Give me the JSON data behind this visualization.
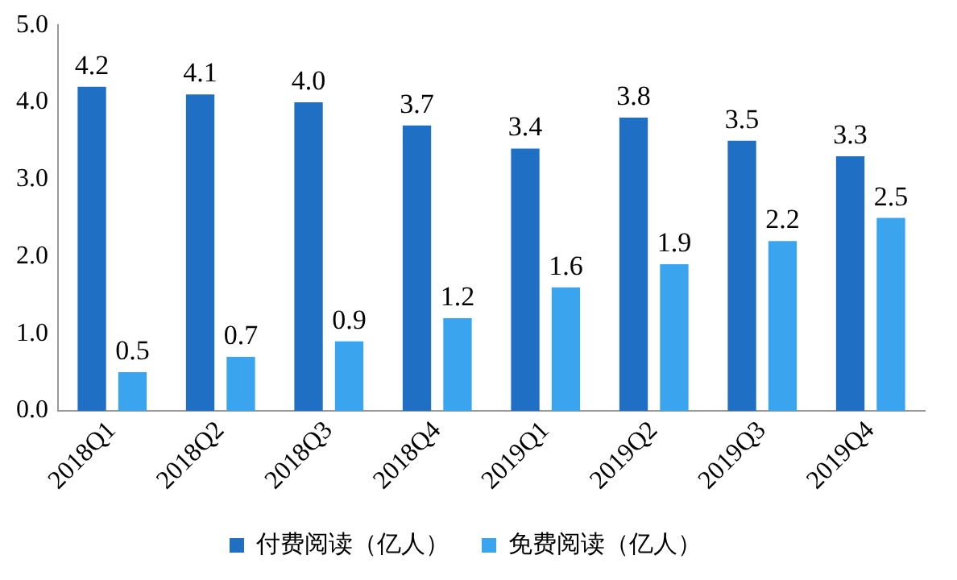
{
  "chart_data": {
    "type": "bar",
    "categories": [
      "2018Q1",
      "2018Q2",
      "2018Q3",
      "2018Q4",
      "2019Q1",
      "2019Q2",
      "2019Q3",
      "2019Q4"
    ],
    "series": [
      {
        "name": "付费阅读（亿人）",
        "color": "#1f6fc4",
        "values": [
          4.2,
          4.1,
          4.0,
          3.7,
          3.4,
          3.8,
          3.5,
          3.3
        ],
        "value_labels": [
          "4.2",
          "4.1",
          "4.0",
          "3.7",
          "3.4",
          "3.8",
          "3.5",
          "3.3"
        ]
      },
      {
        "name": "免费阅读（亿人）",
        "color": "#3aa5ee",
        "values": [
          0.5,
          0.7,
          0.9,
          1.2,
          1.6,
          1.9,
          2.2,
          2.5
        ],
        "value_labels": [
          "0.5",
          "0.7",
          "0.9",
          "1.2",
          "1.6",
          "1.9",
          "2.2",
          "2.5"
        ]
      }
    ],
    "ylim": [
      0,
      5
    ],
    "yticks": [
      {
        "value": 0,
        "label": "0.0"
      },
      {
        "value": 1,
        "label": "1.0"
      },
      {
        "value": 2,
        "label": "2.0"
      },
      {
        "value": 3,
        "label": "3.0"
      },
      {
        "value": 4,
        "label": "4.0"
      },
      {
        "value": 5,
        "label": "5.0"
      }
    ],
    "grid": false,
    "legend": "bottom"
  }
}
